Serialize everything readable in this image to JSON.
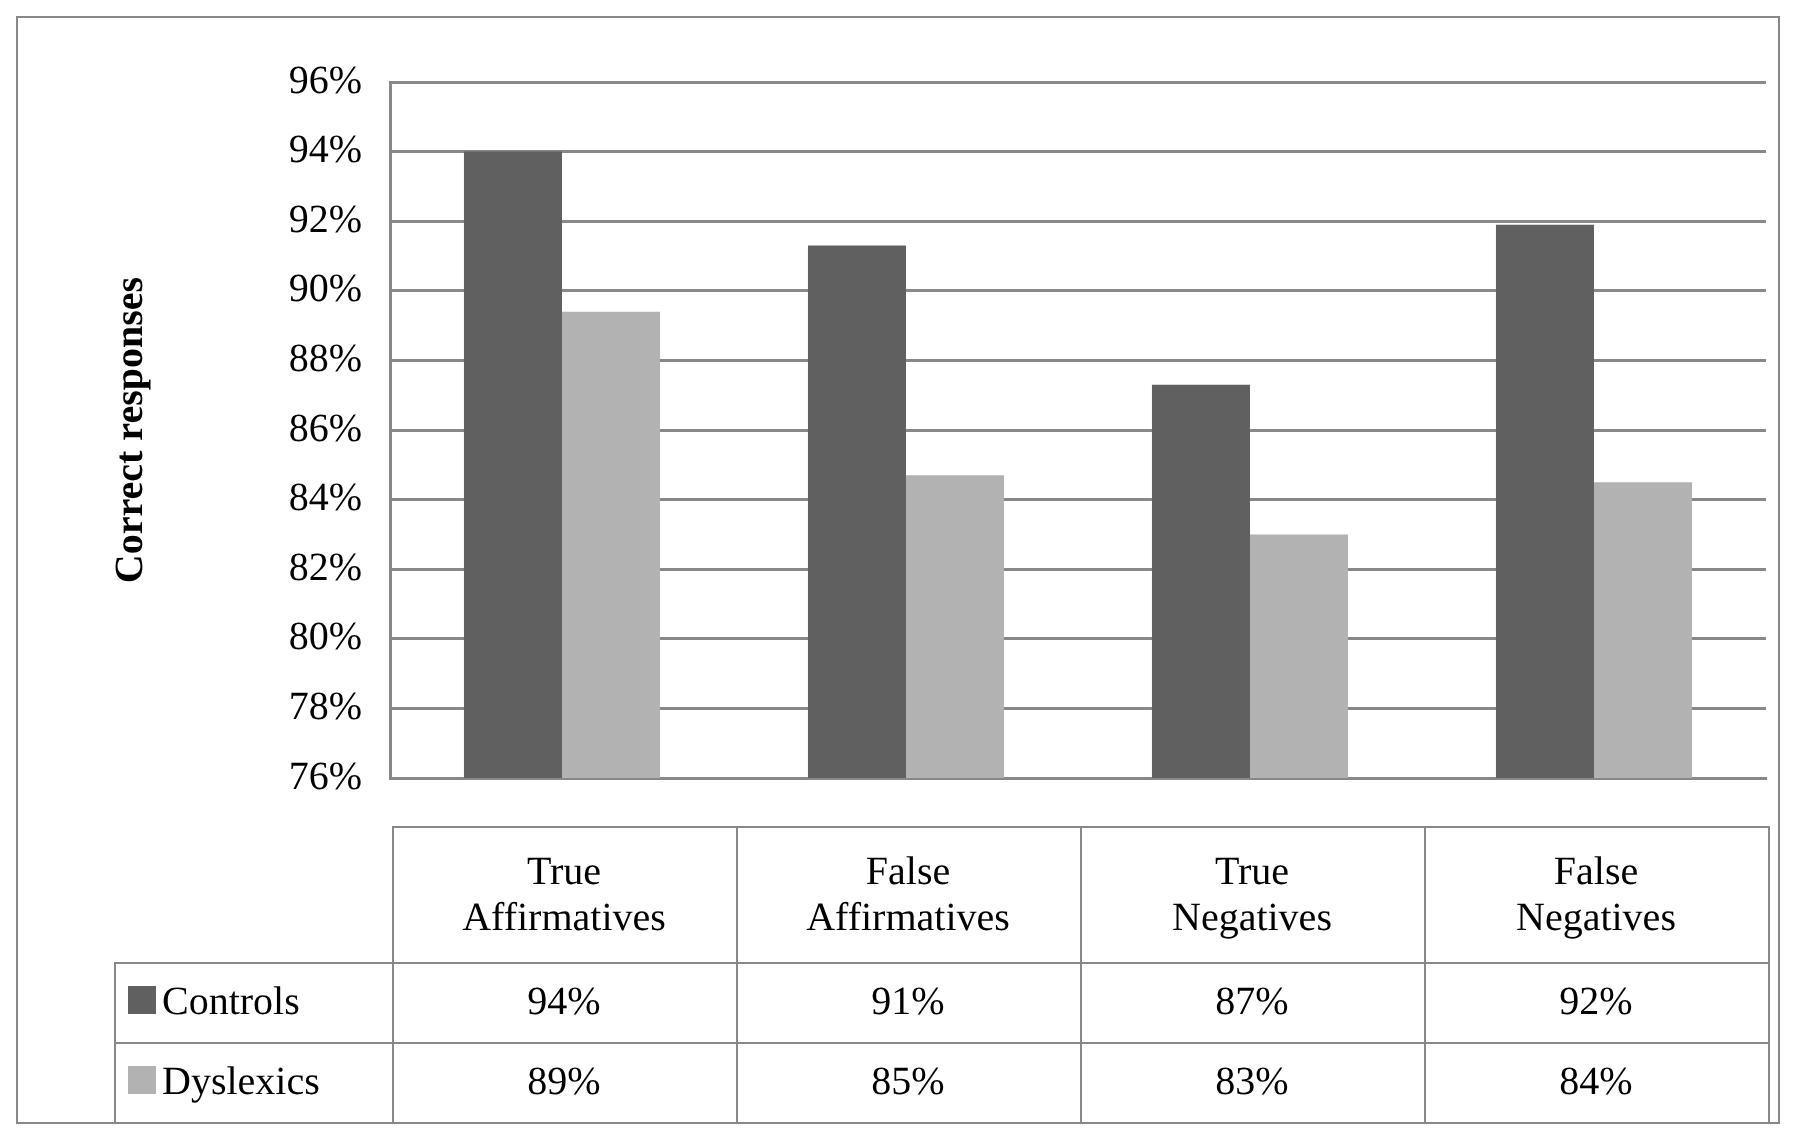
{
  "chart_data": {
    "type": "bar",
    "ylabel": "Correct responses",
    "categories": [
      "True Affirmatives",
      "False Affirmatives",
      "True Negatives",
      "False Negatives"
    ],
    "series": [
      {
        "name": "Controls",
        "color": "#606060",
        "values": [
          94.0,
          91.3,
          87.3,
          91.9
        ],
        "value_labels": [
          "94%",
          "91%",
          "87%",
          "92%"
        ]
      },
      {
        "name": "Dyslexics",
        "color": "#b2b2b2",
        "values": [
          89.4,
          84.7,
          83.0,
          84.5
        ],
        "value_labels": [
          "89%",
          "85%",
          "83%",
          "84%"
        ]
      }
    ],
    "ylim": [
      76,
      96
    ],
    "yticks": [
      {
        "value": 76,
        "label": "76%"
      },
      {
        "value": 78,
        "label": "78%"
      },
      {
        "value": 80,
        "label": "80%"
      },
      {
        "value": 82,
        "label": "82%"
      },
      {
        "value": 84,
        "label": "84%"
      },
      {
        "value": 86,
        "label": "86%"
      },
      {
        "value": 88,
        "label": "88%"
      },
      {
        "value": 90,
        "label": "90%"
      },
      {
        "value": 92,
        "label": "92%"
      },
      {
        "value": 94,
        "label": "94%"
      },
      {
        "value": 96,
        "label": "96%"
      }
    ],
    "grid": "y",
    "legend": "bottom"
  }
}
